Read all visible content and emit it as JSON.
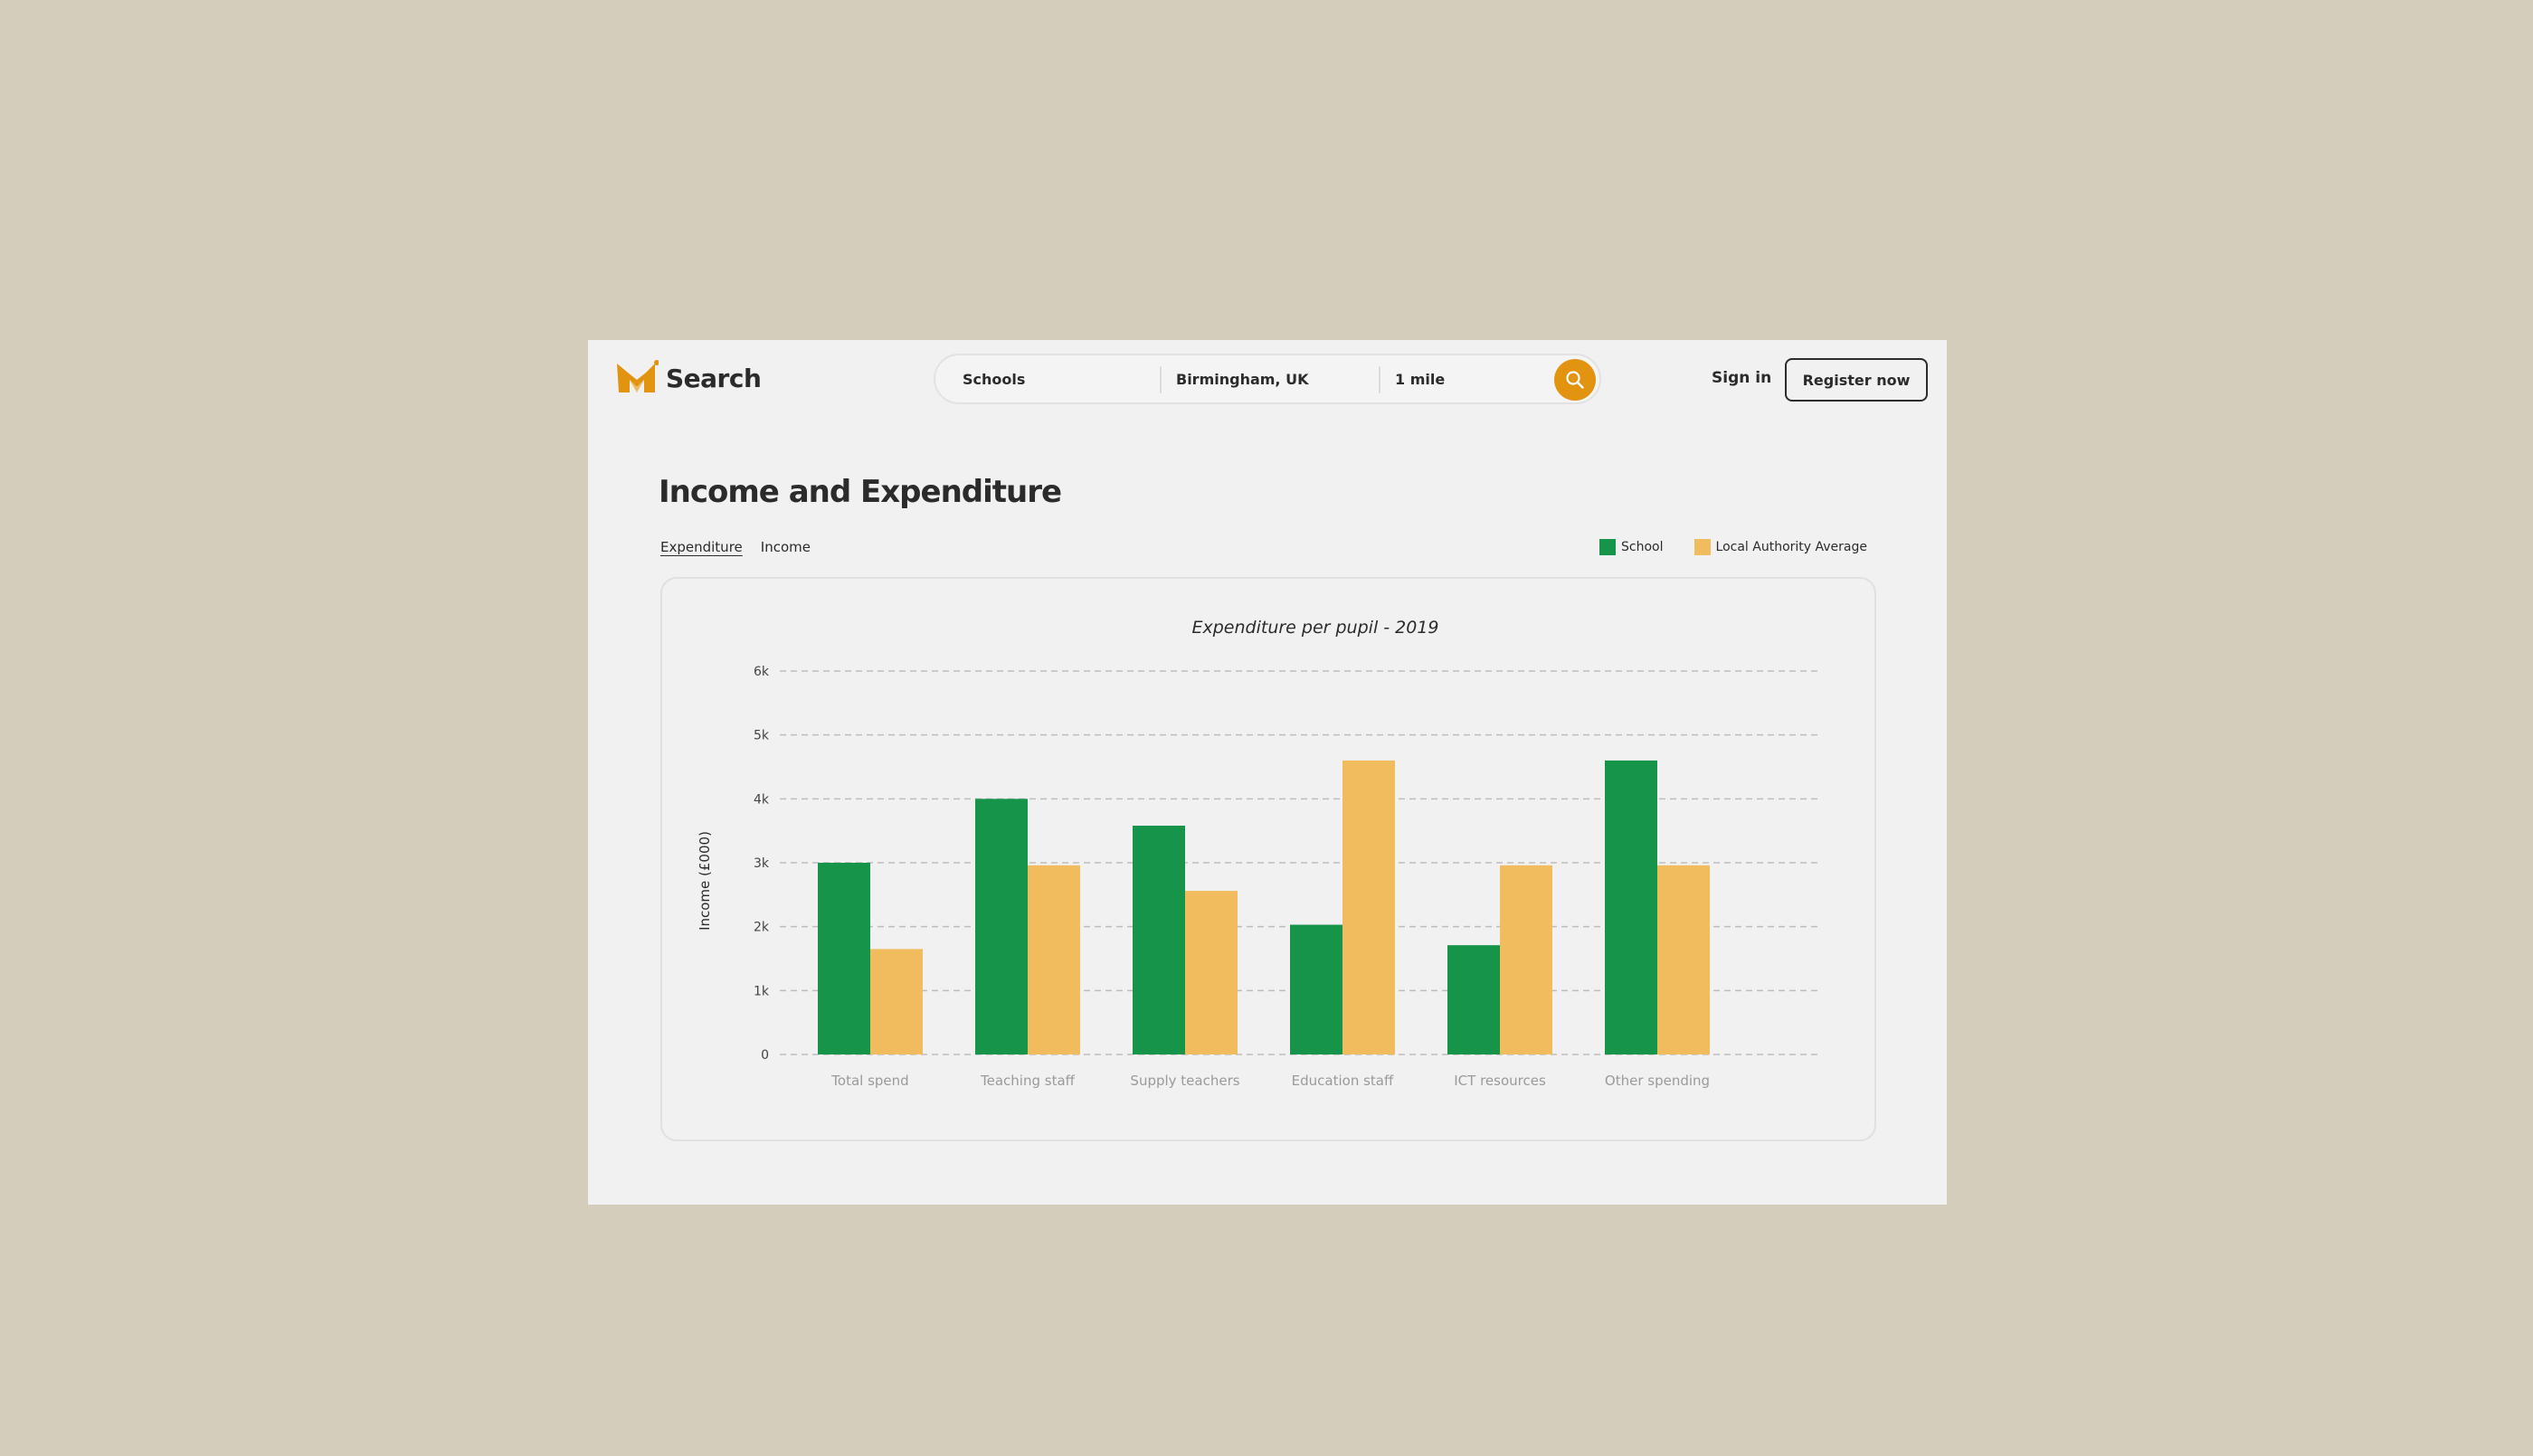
{
  "brand": {
    "name": "Search",
    "accent": "#e29410"
  },
  "search": {
    "category": "Schools",
    "location": "Birmingham, UK",
    "radius": "1 mile",
    "button_icon": "search-icon"
  },
  "auth": {
    "signin_label": "Sign in",
    "register_label": "Register now"
  },
  "page": {
    "title": "Income and Expenditure"
  },
  "tabs": [
    {
      "label": "Expenditure",
      "active": true
    },
    {
      "label": "Income",
      "active": false
    }
  ],
  "legend": [
    {
      "label": "School",
      "color": "#16944a"
    },
    {
      "label": "Local Authority Average",
      "color": "#f0bc5e"
    }
  ],
  "chart_data": {
    "type": "bar",
    "title": "Expenditure per pupil - 2019",
    "xlabel": "",
    "ylabel": "Income (£000)",
    "ylim": [
      0,
      6000
    ],
    "yticks": [
      0,
      1000,
      2000,
      3000,
      4000,
      5000,
      6000
    ],
    "ytick_labels": [
      "0",
      "1k",
      "2k",
      "3k",
      "4k",
      "5k",
      "6k"
    ],
    "grid": true,
    "legend_position": "top-right",
    "categories": [
      "Total spend",
      "Teaching staff",
      "Supply teachers",
      "Education staff",
      "ICT resources",
      "Other spending"
    ],
    "series": [
      {
        "name": "School",
        "color": "#16944a",
        "values": [
          3000,
          4000,
          3580,
          2030,
          1710,
          4600
        ]
      },
      {
        "name": "Local Authority Average",
        "color": "#f0bc5e",
        "values": [
          1650,
          2960,
          2560,
          4600,
          2960,
          2960
        ]
      }
    ]
  }
}
